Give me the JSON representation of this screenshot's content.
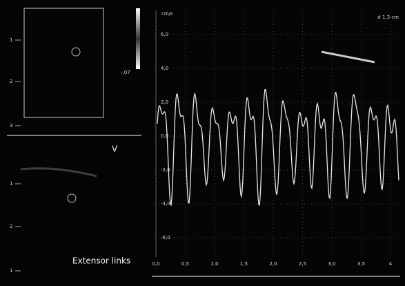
{
  "header": {
    "depth": "d 1.3 cm",
    "unit": "cm/s",
    "color_scale": "-.07",
    "view_mark": "V",
    "label": "Extensor links"
  },
  "depth_scale_top": [
    "1",
    "2",
    "3"
  ],
  "depth_scale_bottom": [
    "1",
    "2",
    "1"
  ],
  "velocity_labels": [
    "6,0",
    "4,0",
    "2,0",
    "0,0",
    "-2,0",
    "-4,0",
    "-6,0"
  ],
  "time_labels": [
    "0,0",
    "0,5",
    "1,0",
    "1,5",
    "2,0",
    "2,5",
    "3,0",
    "3,5",
    "4"
  ]
}
